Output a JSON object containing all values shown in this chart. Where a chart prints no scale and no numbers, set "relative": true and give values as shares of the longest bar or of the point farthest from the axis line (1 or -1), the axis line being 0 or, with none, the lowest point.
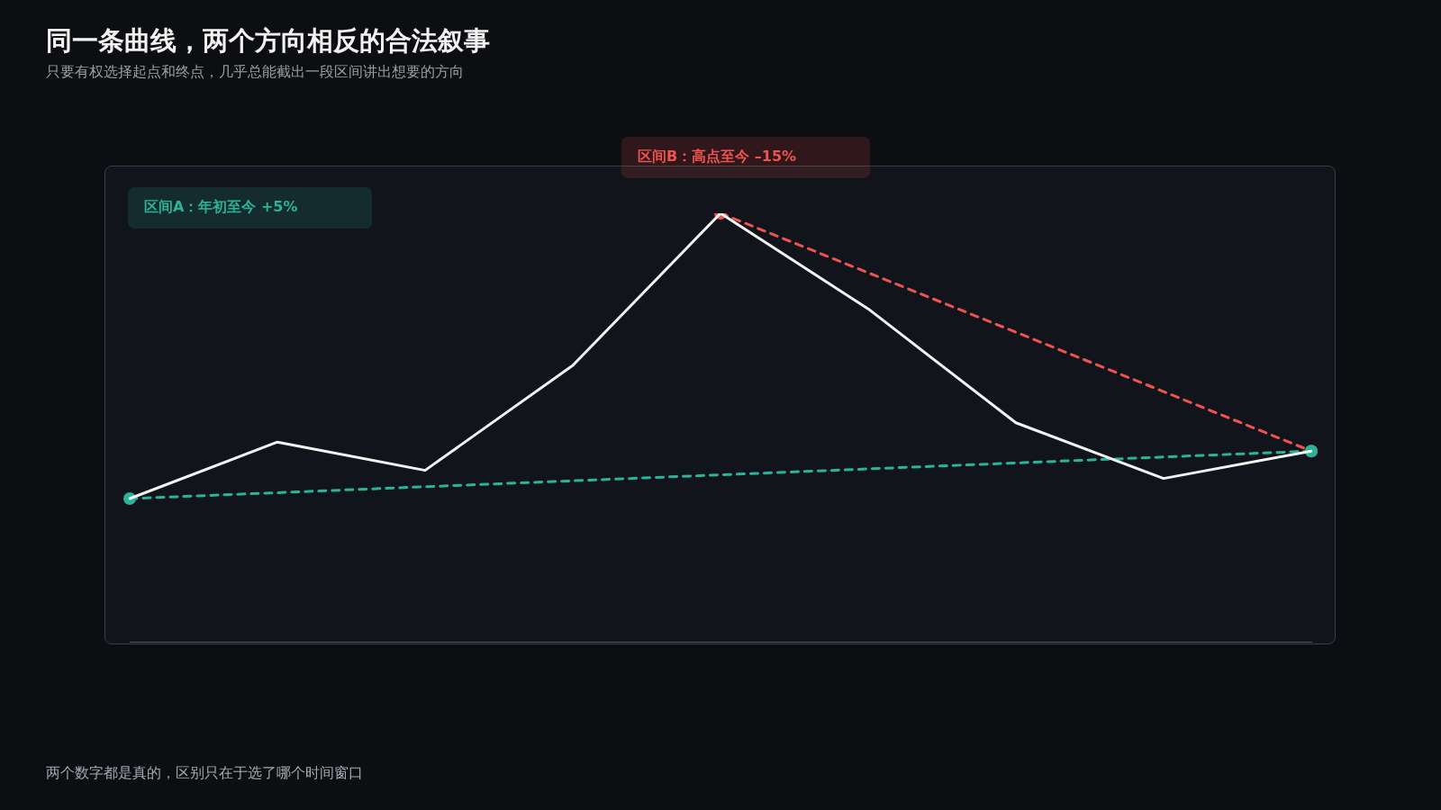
{
  "chart_data": {
    "type": "line",
    "title": "同一条曲线，两个方向相反的合法叙事",
    "subtitle": "只要有权选择起点和终点，几乎总能截出一段区间讲出想要的方向",
    "relative": true,
    "categories": [
      null,
      null,
      null,
      null,
      null,
      null,
      null,
      null,
      null
    ],
    "legend": false,
    "grid": false,
    "series": [
      {
        "color": "#f2f2f2",
        "line_style": "solid",
        "marker": "none",
        "values": [
          0.334,
          0.466,
          0.4,
          0.645,
          1,
          0.777,
          0.511,
          0.381,
          0.445
        ]
      },
      {
        "name": "区间A：年初至今 +5%",
        "color": "#2bb39a",
        "line_style": "dashed",
        "marker": "circle",
        "values": [
          0.334,
          null,
          null,
          null,
          null,
          null,
          null,
          null,
          0.445
        ]
      },
      {
        "name": "区间B：高点至今 –15%",
        "color": "#ef5350",
        "line_style": "dashed",
        "marker": "circle",
        "values": [
          null,
          null,
          null,
          null,
          1,
          null,
          null,
          null,
          0.445
        ]
      }
    ],
    "annotations": [
      "两个数字都是真的，区别只在于选了哪个时间窗口"
    ]
  }
}
